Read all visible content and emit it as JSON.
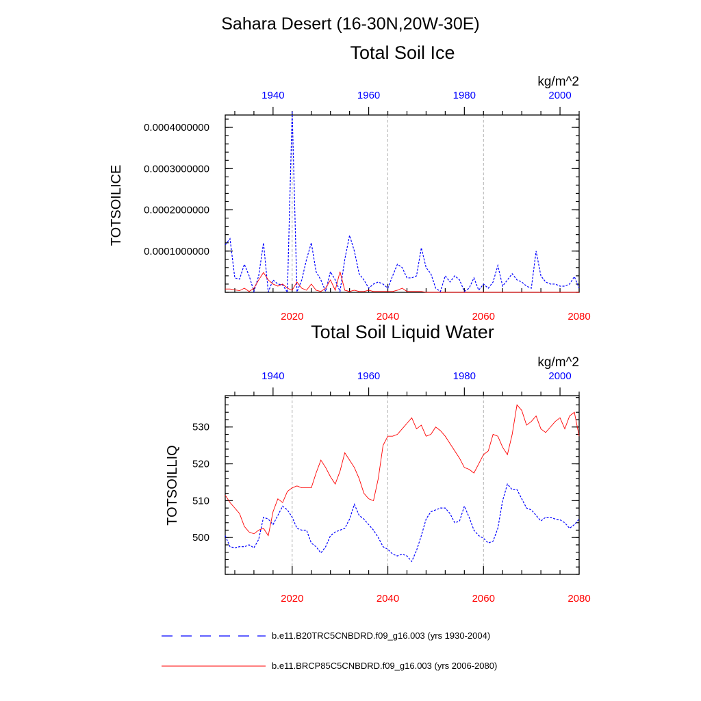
{
  "figure": {
    "title": "Sahara Desert (16-30N,20W-30E)",
    "legend": [
      {
        "label": "b.e11.B20TRC5CNBDRD.f09_g16.003 (yrs 1930-2004)",
        "color": "#0000ff",
        "style": "dashed"
      },
      {
        "label": "b.e11.BRCP85C5CNBDRD.f09_g16.003 (yrs 2006-2080)",
        "color": "#ff0000",
        "style": "solid"
      }
    ]
  },
  "chart_data": [
    {
      "type": "line",
      "title": "Total Soil Ice",
      "ylabel": "TOTSOILICE",
      "units": "kg/m^2",
      "ylim": [
        0,
        0.00043
      ],
      "yticks": [
        {
          "value": 0.0001,
          "label": "0.0001000000"
        },
        {
          "value": 0.0002,
          "label": "0.0002000000"
        },
        {
          "value": 0.0003,
          "label": "0.0003000000"
        },
        {
          "value": 0.0004,
          "label": "0.0004000000"
        }
      ],
      "top_axis": {
        "label_color": "#0000ff",
        "xlim": [
          1930,
          2004
        ],
        "ticks": [
          1940,
          1960,
          1980,
          2000
        ]
      },
      "bottom_axis": {
        "label_color": "#ff0000",
        "xlim": [
          2006,
          2080
        ],
        "ticks": [
          2020,
          2040,
          2060,
          2080
        ]
      },
      "gridlines_x_bottom": [
        2020,
        2040,
        2060
      ],
      "series": [
        {
          "name": "b.e11.B20TRC5CNBDRD.f09_g16.003 (yrs 1930-2004)",
          "color": "#0000ff",
          "style": "dashed",
          "axis": "top",
          "x": [
            1930,
            1931,
            1932,
            1933,
            1934,
            1935,
            1936,
            1937,
            1938,
            1939,
            1940,
            1941,
            1942,
            1943,
            1944,
            1945,
            1946,
            1947,
            1948,
            1949,
            1950,
            1951,
            1952,
            1953,
            1954,
            1955,
            1956,
            1957,
            1958,
            1959,
            1960,
            1961,
            1962,
            1963,
            1964,
            1965,
            1966,
            1967,
            1968,
            1969,
            1970,
            1971,
            1972,
            1973,
            1974,
            1975,
            1976,
            1977,
            1978,
            1979,
            1980,
            1981,
            1982,
            1983,
            1984,
            1985,
            1986,
            1987,
            1988,
            1989,
            1990,
            1991,
            1992,
            1993,
            1994,
            1995,
            1996,
            1997,
            1998,
            1999,
            2000,
            2001,
            2002,
            2003,
            2004
          ],
          "values": [
            0.000115,
            0.00013,
            3.5e-05,
            3.2e-05,
            6.8e-05,
            4e-05,
            2e-06,
            4e-05,
            0.00012,
            1e-06,
            3e-05,
            2e-05,
            1.8e-05,
            0.0,
            0.00044,
            1e-06,
            3e-05,
            8e-05,
            0.00012,
            5e-05,
            3e-05,
            2e-06,
            5e-05,
            3e-05,
            2e-06,
            8e-05,
            0.000138,
            0.0001,
            4.5e-05,
            3e-05,
            1e-05,
            2e-05,
            2.5e-05,
            2e-05,
            1e-05,
            4e-05,
            6.8e-05,
            6e-05,
            3.5e-05,
            3.5e-05,
            4e-05,
            0.000108,
            6e-05,
            4.5e-05,
            1e-05,
            2e-06,
            4e-05,
            2.5e-05,
            4e-05,
            3e-05,
            2e-06,
            1e-05,
            3.5e-05,
            5e-06,
            2e-05,
            1e-05,
            2.5e-05,
            6.5e-05,
            1.5e-05,
            3e-05,
            4.5e-05,
            3e-05,
            2.5e-05,
            1.5e-05,
            1e-05,
            0.0001,
            4e-05,
            2.5e-05,
            2e-05,
            2e-05,
            1.5e-05,
            1.5e-05,
            2e-05,
            3.8e-05,
            1e-05
          ]
        },
        {
          "name": "b.e11.BRCP85C5CNBDRD.f09_g16.003 (yrs 2006-2080)",
          "color": "#ff0000",
          "style": "solid",
          "axis": "bottom",
          "x": [
            2006,
            2007,
            2008,
            2009,
            2010,
            2011,
            2012,
            2013,
            2014,
            2015,
            2016,
            2017,
            2018,
            2019,
            2020,
            2021,
            2022,
            2023,
            2024,
            2025,
            2026,
            2027,
            2028,
            2029,
            2030,
            2031,
            2032,
            2033,
            2034,
            2035,
            2036,
            2037,
            2038,
            2039,
            2040,
            2041,
            2042,
            2043,
            2044,
            2045,
            2046,
            2047,
            2048,
            2049,
            2050,
            2051,
            2052,
            2053,
            2054,
            2055,
            2056,
            2057,
            2058,
            2059,
            2060,
            2061,
            2062,
            2063,
            2064,
            2065,
            2066,
            2067,
            2068,
            2069,
            2070,
            2071,
            2072,
            2073,
            2074,
            2075,
            2076,
            2077,
            2078,
            2079,
            2080
          ],
          "values": [
            8e-06,
            8e-06,
            6e-06,
            4e-06,
            1e-05,
            2e-06,
            1e-05,
            3e-05,
            4.8e-05,
            3e-05,
            2e-05,
            1.5e-05,
            2e-05,
            1e-05,
            5e-06,
            2.5e-05,
            1e-05,
            5e-06,
            2e-05,
            5e-06,
            2e-06,
            1e-05,
            3e-05,
            5e-06,
            5e-05,
            5e-06,
            2e-06,
            5e-06,
            2e-06,
            2e-06,
            5e-06,
            2e-06,
            2e-06,
            2e-06,
            2e-06,
            2e-06,
            5e-06,
            1e-05,
            2e-06,
            2e-06,
            2e-06,
            2e-06,
            0.0,
            0.0,
            0.0,
            0.0,
            0.0,
            0.0,
            0.0,
            0.0,
            0.0,
            0.0,
            0.0,
            0.0,
            0.0,
            0.0,
            0.0,
            0.0,
            0.0,
            0.0,
            0.0,
            0.0,
            0.0,
            0.0,
            0.0,
            0.0,
            0.0,
            0.0,
            0.0,
            0.0,
            0.0,
            0.0,
            0.0,
            0.0,
            0.0
          ]
        }
      ]
    },
    {
      "type": "line",
      "title": "Total Soil Liquid Water",
      "ylabel": "TOTSOILLIQ",
      "units": "kg/m^2",
      "ylim": [
        490.0,
        538.5
      ],
      "yticks": [
        {
          "value": 500,
          "label": "500"
        },
        {
          "value": 510,
          "label": "510"
        },
        {
          "value": 520,
          "label": "520"
        },
        {
          "value": 530,
          "label": "530"
        }
      ],
      "top_axis": {
        "label_color": "#0000ff",
        "xlim": [
          1930,
          2004
        ],
        "ticks": [
          1940,
          1960,
          1980,
          2000
        ]
      },
      "bottom_axis": {
        "label_color": "#ff0000",
        "xlim": [
          2006,
          2080
        ],
        "ticks": [
          2020,
          2040,
          2060,
          2080
        ]
      },
      "gridlines_x_bottom": [
        2020,
        2040,
        2060
      ],
      "series": [
        {
          "name": "b.e11.B20TRC5CNBDRD.f09_g16.003 (yrs 1930-2004)",
          "color": "#0000ff",
          "style": "dashed",
          "axis": "top",
          "x": [
            1930,
            1931,
            1932,
            1933,
            1934,
            1935,
            1936,
            1937,
            1938,
            1939,
            1940,
            1941,
            1942,
            1943,
            1944,
            1945,
            1946,
            1947,
            1948,
            1949,
            1950,
            1951,
            1952,
            1953,
            1954,
            1955,
            1956,
            1957,
            1958,
            1959,
            1960,
            1961,
            1962,
            1963,
            1964,
            1965,
            1966,
            1967,
            1968,
            1969,
            1970,
            1971,
            1972,
            1973,
            1974,
            1975,
            1976,
            1977,
            1978,
            1979,
            1980,
            1981,
            1982,
            1983,
            1984,
            1985,
            1986,
            1987,
            1988,
            1989,
            1990,
            1991,
            1992,
            1993,
            1994,
            1995,
            1996,
            1997,
            1998,
            1999,
            2000,
            2001,
            2002,
            2003,
            2004
          ],
          "values": [
            500.5,
            497.5,
            497.2,
            497.5,
            497.5,
            498.0,
            497.2,
            499.5,
            505.5,
            505.0,
            503.5,
            506.0,
            508.5,
            507.5,
            505.5,
            502.5,
            502.0,
            502.0,
            498.5,
            497.5,
            495.8,
            497.5,
            500.5,
            501.5,
            502.0,
            502.5,
            505.0,
            509.0,
            506.0,
            505.0,
            503.5,
            502.0,
            500.0,
            497.5,
            496.8,
            495.5,
            495.0,
            495.5,
            495.0,
            493.5,
            496.5,
            500.5,
            505.0,
            507.0,
            507.5,
            508.0,
            508.0,
            506.5,
            504.0,
            504.5,
            508.5,
            505.5,
            502.0,
            500.5,
            499.8,
            498.5,
            499.0,
            502.5,
            510.0,
            514.5,
            513.0,
            513.0,
            510.5,
            508.0,
            507.5,
            506.0,
            504.5,
            505.5,
            505.5,
            505.0,
            504.8,
            504.0,
            502.5,
            503.5,
            505.0
          ]
        },
        {
          "name": "b.e11.BRCP85C5CNBDRD.f09_g16.003 (yrs 2006-2080)",
          "color": "#ff0000",
          "style": "solid",
          "axis": "bottom",
          "x": [
            2006,
            2007,
            2008,
            2009,
            2010,
            2011,
            2012,
            2013,
            2014,
            2015,
            2016,
            2017,
            2018,
            2019,
            2020,
            2021,
            2022,
            2023,
            2024,
            2025,
            2026,
            2027,
            2028,
            2029,
            2030,
            2031,
            2032,
            2033,
            2034,
            2035,
            2036,
            2037,
            2038,
            2039,
            2040,
            2041,
            2042,
            2043,
            2044,
            2045,
            2046,
            2047,
            2048,
            2049,
            2050,
            2051,
            2052,
            2053,
            2054,
            2055,
            2056,
            2057,
            2058,
            2059,
            2060,
            2061,
            2062,
            2063,
            2064,
            2065,
            2066,
            2067,
            2068,
            2069,
            2070,
            2071,
            2072,
            2073,
            2074,
            2075,
            2076,
            2077,
            2078,
            2079,
            2080
          ],
          "values": [
            511.5,
            509.5,
            508.0,
            506.5,
            503.0,
            501.5,
            501.0,
            502.0,
            502.5,
            500.5,
            507.0,
            510.5,
            509.5,
            512.5,
            513.5,
            514.0,
            513.5,
            513.5,
            513.5,
            517.5,
            521.0,
            519.0,
            516.5,
            514.5,
            518.0,
            523.0,
            521.0,
            519.0,
            516.0,
            512.0,
            510.5,
            510.0,
            516.0,
            525.0,
            527.5,
            527.5,
            528.0,
            529.5,
            531.0,
            532.5,
            529.5,
            530.5,
            527.5,
            528.0,
            530.0,
            529.0,
            527.5,
            525.5,
            523.5,
            521.5,
            519.0,
            518.5,
            517.5,
            520.0,
            522.5,
            523.5,
            528.0,
            527.5,
            524.5,
            522.5,
            528.0,
            536.0,
            534.5,
            530.5,
            531.5,
            533.0,
            529.5,
            528.5,
            530.0,
            531.5,
            532.5,
            529.5,
            533.0,
            534.0,
            527.5
          ]
        }
      ]
    }
  ]
}
